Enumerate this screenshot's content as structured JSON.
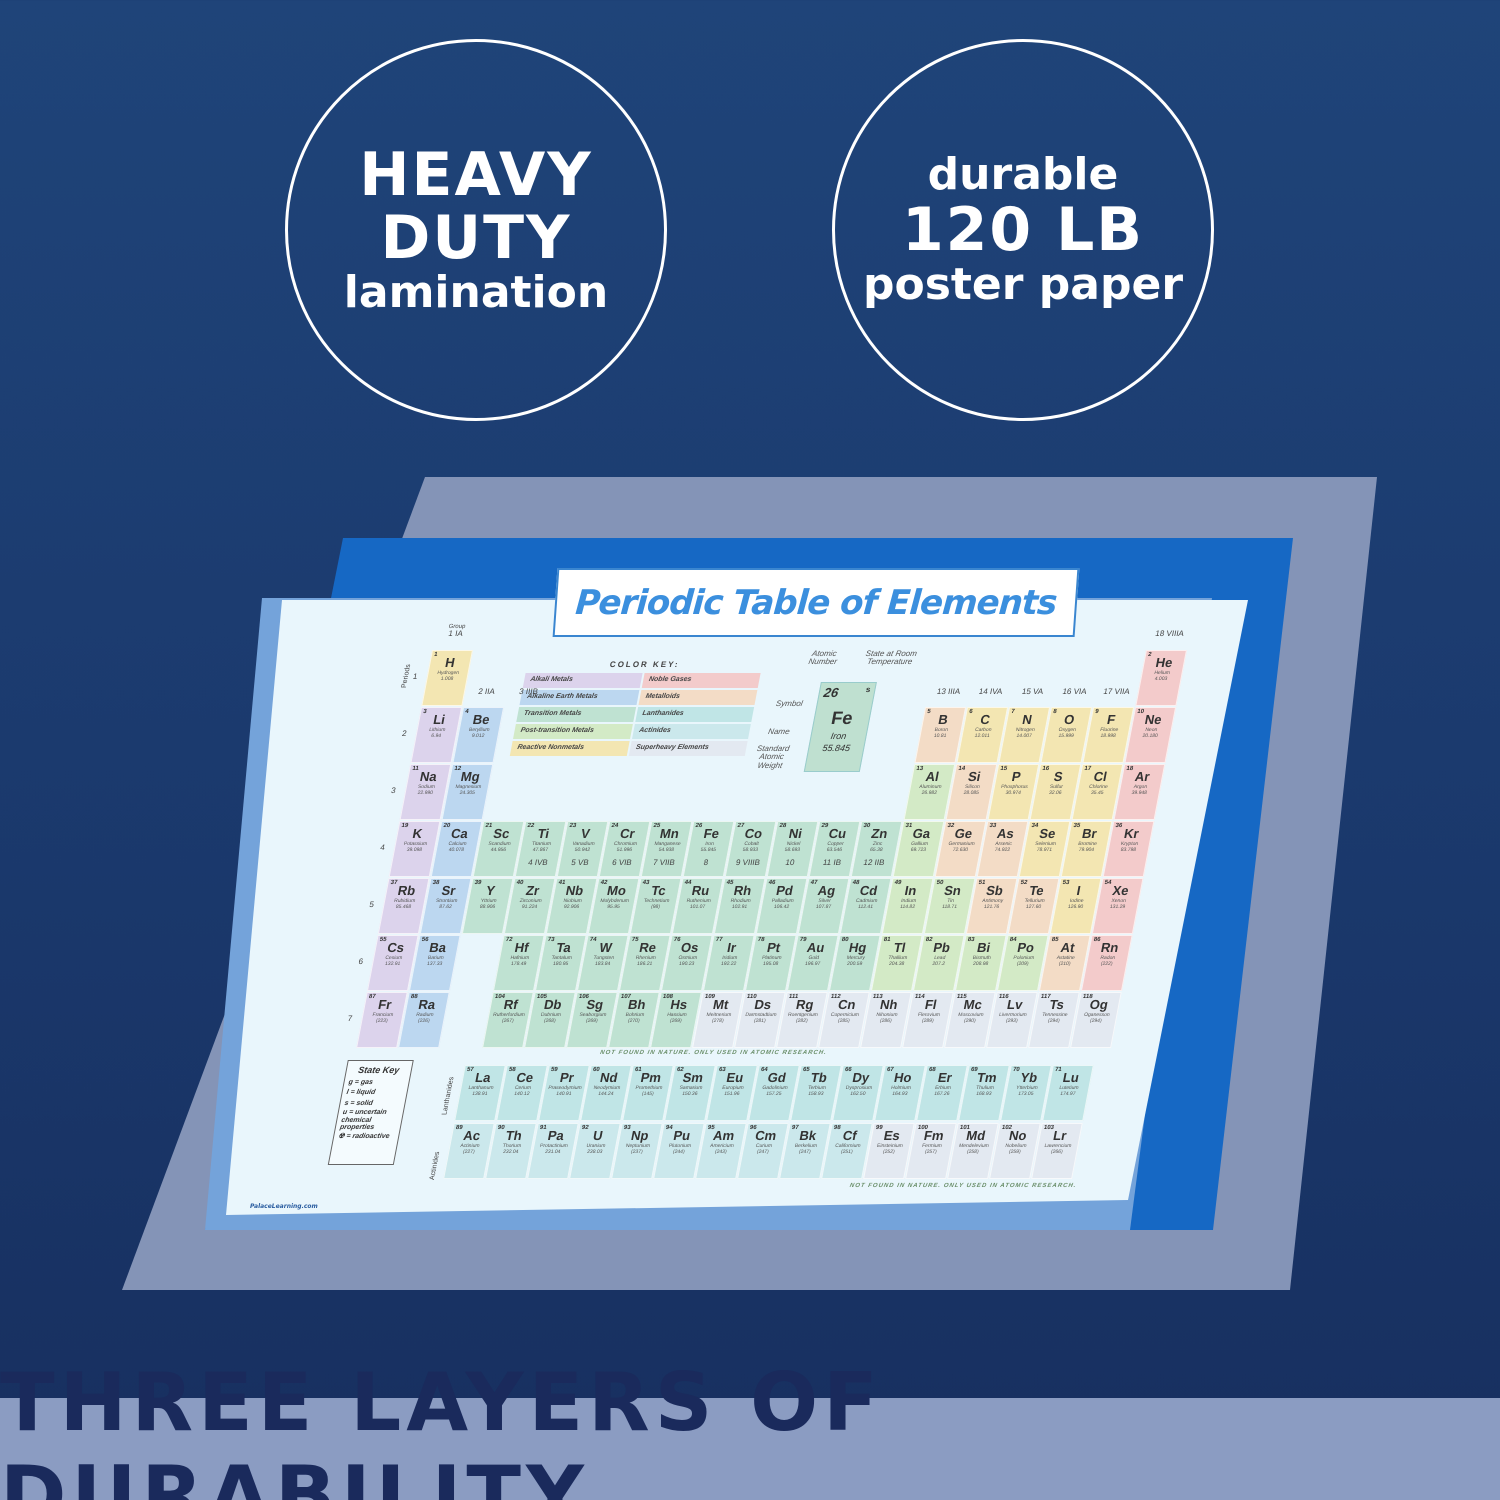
{
  "badges": [
    {
      "line1": "HEAVY",
      "line2": "DUTY",
      "line3": "lamination"
    },
    {
      "line1": "durable",
      "line2": "120 LB",
      "line3": "poster paper"
    }
  ],
  "poster": {
    "title": "Periodic Table of Elements",
    "website": "PalaceLearning.com",
    "group_heading": "Group",
    "periods_heading": "Periods",
    "groups": [
      "1 IA",
      "2 IIA",
      "3 IIIB",
      "4 IVB",
      "5 VB",
      "6 VIB",
      "7 VIIB",
      "8",
      "9 VIIIB",
      "10",
      "11 IB",
      "12 IIB",
      "13 IIIA",
      "14 IVA",
      "15 VA",
      "16 VIA",
      "17 VIIA",
      "18 VIIIA"
    ],
    "periods": [
      "1",
      "2",
      "3",
      "4",
      "5",
      "6",
      "7"
    ],
    "color_key": {
      "title": "COLOR KEY:",
      "items": [
        {
          "label": "Alkali Metals",
          "cat": "a",
          "color": "#dcd3ec"
        },
        {
          "label": "Noble Gases",
          "cat": "g",
          "color": "#f3cbcb"
        },
        {
          "label": "Alkaline Earth Metals",
          "cat": "ae",
          "color": "#bcd7f0"
        },
        {
          "label": "Metalloids",
          "cat": "m",
          "color": "#f3dcc6"
        },
        {
          "label": "Transition Metals",
          "cat": "t",
          "color": "#bfe2d2"
        },
        {
          "label": "Lanthanides",
          "cat": "l",
          "color": "#c0e5e6"
        },
        {
          "label": "Post-transition Metals",
          "cat": "p",
          "color": "#d3eac6"
        },
        {
          "label": "Actinides",
          "cat": "ac",
          "color": "#cbe8ec"
        },
        {
          "label": "Reactive Nonmetals",
          "cat": "n",
          "color": "#f3e6b2"
        },
        {
          "label": "Superheavy Elements",
          "cat": "s",
          "color": "#e3e9f1"
        }
      ]
    },
    "legend_cell": {
      "number": "26",
      "state": "s",
      "symbol": "Fe",
      "name": "Iron",
      "weight": "55.845",
      "label_number": "Atomic Number",
      "label_state": "State at Room Temperature",
      "label_symbol": "Symbol",
      "label_name": "Name",
      "label_weight": "Standard Atomic Weight"
    },
    "state_key": {
      "title": "State Key",
      "lines": [
        "g = gas",
        "l = liquid",
        "s = solid",
        "u = uncertain chemical properties",
        "☢ = radioactive"
      ]
    },
    "lanthanides_label": "Lanthanides",
    "actinides_label": "Actinides",
    "note_superheavy": "NOT FOUND IN NATURE. ONLY USED IN ATOMIC RESEARCH.",
    "elements": [
      [
        1,
        "H",
        "Hydrogen",
        "1.008",
        "n"
      ],
      [
        2,
        "He",
        "Helium",
        "4.003",
        "g"
      ],
      [
        3,
        "Li",
        "Lithium",
        "6.94",
        "a"
      ],
      [
        4,
        "Be",
        "Beryllium",
        "9.012",
        "ae"
      ],
      [
        5,
        "B",
        "Boron",
        "10.81",
        "m"
      ],
      [
        6,
        "C",
        "Carbon",
        "12.011",
        "n"
      ],
      [
        7,
        "N",
        "Nitrogen",
        "14.007",
        "n"
      ],
      [
        8,
        "O",
        "Oxygen",
        "15.999",
        "n"
      ],
      [
        9,
        "F",
        "Fluorine",
        "18.998",
        "n"
      ],
      [
        10,
        "Ne",
        "Neon",
        "20.180",
        "g"
      ],
      [
        11,
        "Na",
        "Sodium",
        "22.990",
        "a"
      ],
      [
        12,
        "Mg",
        "Magnesium",
        "24.305",
        "ae"
      ],
      [
        13,
        "Al",
        "Aluminum",
        "26.982",
        "p"
      ],
      [
        14,
        "Si",
        "Silicon",
        "28.085",
        "m"
      ],
      [
        15,
        "P",
        "Phosphorus",
        "30.974",
        "n"
      ],
      [
        16,
        "S",
        "Sulfur",
        "32.06",
        "n"
      ],
      [
        17,
        "Cl",
        "Chlorine",
        "35.45",
        "n"
      ],
      [
        18,
        "Ar",
        "Argon",
        "39.948",
        "g"
      ],
      [
        19,
        "K",
        "Potassium",
        "39.098",
        "a"
      ],
      [
        20,
        "Ca",
        "Calcium",
        "40.078",
        "ae"
      ],
      [
        21,
        "Sc",
        "Scandium",
        "44.956",
        "t"
      ],
      [
        22,
        "Ti",
        "Titanium",
        "47.867",
        "t"
      ],
      [
        23,
        "V",
        "Vanadium",
        "50.942",
        "t"
      ],
      [
        24,
        "Cr",
        "Chromium",
        "51.996",
        "t"
      ],
      [
        25,
        "Mn",
        "Manganese",
        "54.938",
        "t"
      ],
      [
        26,
        "Fe",
        "Iron",
        "55.845",
        "t"
      ],
      [
        27,
        "Co",
        "Cobalt",
        "58.933",
        "t"
      ],
      [
        28,
        "Ni",
        "Nickel",
        "58.693",
        "t"
      ],
      [
        29,
        "Cu",
        "Copper",
        "63.546",
        "t"
      ],
      [
        30,
        "Zn",
        "Zinc",
        "65.38",
        "t"
      ],
      [
        31,
        "Ga",
        "Gallium",
        "69.723",
        "p"
      ],
      [
        32,
        "Ge",
        "Germanium",
        "72.630",
        "m"
      ],
      [
        33,
        "As",
        "Arsenic",
        "74.922",
        "m"
      ],
      [
        34,
        "Se",
        "Selenium",
        "78.971",
        "n"
      ],
      [
        35,
        "Br",
        "Bromine",
        "79.904",
        "n"
      ],
      [
        36,
        "Kr",
        "Krypton",
        "83.798",
        "g"
      ],
      [
        37,
        "Rb",
        "Rubidium",
        "85.468",
        "a"
      ],
      [
        38,
        "Sr",
        "Strontium",
        "87.62",
        "ae"
      ],
      [
        39,
        "Y",
        "Yttrium",
        "88.906",
        "t"
      ],
      [
        40,
        "Zr",
        "Zirconium",
        "91.224",
        "t"
      ],
      [
        41,
        "Nb",
        "Niobium",
        "92.906",
        "t"
      ],
      [
        42,
        "Mo",
        "Molybdenum",
        "95.95",
        "t"
      ],
      [
        43,
        "Tc",
        "Technetium",
        "(98)",
        "t"
      ],
      [
        44,
        "Ru",
        "Ruthenium",
        "101.07",
        "t"
      ],
      [
        45,
        "Rh",
        "Rhodium",
        "102.91",
        "t"
      ],
      [
        46,
        "Pd",
        "Palladium",
        "106.42",
        "t"
      ],
      [
        47,
        "Ag",
        "Silver",
        "107.87",
        "t"
      ],
      [
        48,
        "Cd",
        "Cadmium",
        "112.41",
        "t"
      ],
      [
        49,
        "In",
        "Indium",
        "114.82",
        "p"
      ],
      [
        50,
        "Sn",
        "Tin",
        "118.71",
        "p"
      ],
      [
        51,
        "Sb",
        "Antimony",
        "121.76",
        "m"
      ],
      [
        52,
        "Te",
        "Tellurium",
        "127.60",
        "m"
      ],
      [
        53,
        "I",
        "Iodine",
        "126.90",
        "n"
      ],
      [
        54,
        "Xe",
        "Xenon",
        "131.29",
        "g"
      ],
      [
        55,
        "Cs",
        "Cesium",
        "132.91",
        "a"
      ],
      [
        56,
        "Ba",
        "Barium",
        "137.33",
        "ae"
      ],
      [
        57,
        "La",
        "Lanthanum",
        "138.91",
        "l"
      ],
      [
        58,
        "Ce",
        "Cerium",
        "140.12",
        "l"
      ],
      [
        59,
        "Pr",
        "Praseodymium",
        "140.91",
        "l"
      ],
      [
        60,
        "Nd",
        "Neodymium",
        "144.24",
        "l"
      ],
      [
        61,
        "Pm",
        "Promethium",
        "(145)",
        "l"
      ],
      [
        62,
        "Sm",
        "Samarium",
        "150.36",
        "l"
      ],
      [
        63,
        "Eu",
        "Europium",
        "151.96",
        "l"
      ],
      [
        64,
        "Gd",
        "Gadolinium",
        "157.25",
        "l"
      ],
      [
        65,
        "Tb",
        "Terbium",
        "158.93",
        "l"
      ],
      [
        66,
        "Dy",
        "Dysprosium",
        "162.50",
        "l"
      ],
      [
        67,
        "Ho",
        "Holmium",
        "164.93",
        "l"
      ],
      [
        68,
        "Er",
        "Erbium",
        "167.26",
        "l"
      ],
      [
        69,
        "Tm",
        "Thulium",
        "168.93",
        "l"
      ],
      [
        70,
        "Yb",
        "Ytterbium",
        "173.05",
        "l"
      ],
      [
        71,
        "Lu",
        "Lutetium",
        "174.97",
        "l"
      ],
      [
        72,
        "Hf",
        "Hafnium",
        "178.49",
        "t"
      ],
      [
        73,
        "Ta",
        "Tantalum",
        "180.95",
        "t"
      ],
      [
        74,
        "W",
        "Tungsten",
        "183.84",
        "t"
      ],
      [
        75,
        "Re",
        "Rhenium",
        "186.21",
        "t"
      ],
      [
        76,
        "Os",
        "Osmium",
        "190.23",
        "t"
      ],
      [
        77,
        "Ir",
        "Iridium",
        "192.22",
        "t"
      ],
      [
        78,
        "Pt",
        "Platinum",
        "195.08",
        "t"
      ],
      [
        79,
        "Au",
        "Gold",
        "196.97",
        "t"
      ],
      [
        80,
        "Hg",
        "Mercury",
        "200.59",
        "t"
      ],
      [
        81,
        "Tl",
        "Thallium",
        "204.38",
        "p"
      ],
      [
        82,
        "Pb",
        "Lead",
        "207.2",
        "p"
      ],
      [
        83,
        "Bi",
        "Bismuth",
        "208.98",
        "p"
      ],
      [
        84,
        "Po",
        "Polonium",
        "(209)",
        "p"
      ],
      [
        85,
        "At",
        "Astatine",
        "(210)",
        "m"
      ],
      [
        86,
        "Rn",
        "Radon",
        "(222)",
        "g"
      ],
      [
        87,
        "Fr",
        "Francium",
        "(223)",
        "a"
      ],
      [
        88,
        "Ra",
        "Radium",
        "(226)",
        "ae"
      ],
      [
        89,
        "Ac",
        "Actinium",
        "(227)",
        "ac"
      ],
      [
        90,
        "Th",
        "Thorium",
        "232.04",
        "ac"
      ],
      [
        91,
        "Pa",
        "Protactinium",
        "231.04",
        "ac"
      ],
      [
        92,
        "U",
        "Uranium",
        "238.03",
        "ac"
      ],
      [
        93,
        "Np",
        "Neptunium",
        "(237)",
        "ac"
      ],
      [
        94,
        "Pu",
        "Plutonium",
        "(244)",
        "ac"
      ],
      [
        95,
        "Am",
        "Americium",
        "(243)",
        "ac"
      ],
      [
        96,
        "Cm",
        "Curium",
        "(247)",
        "ac"
      ],
      [
        97,
        "Bk",
        "Berkelium",
        "(247)",
        "ac"
      ],
      [
        98,
        "Cf",
        "Californium",
        "(251)",
        "ac"
      ],
      [
        99,
        "Es",
        "Einsteinium",
        "(252)",
        "s"
      ],
      [
        100,
        "Fm",
        "Fermium",
        "(257)",
        "s"
      ],
      [
        101,
        "Md",
        "Mendelevium",
        "(258)",
        "s"
      ],
      [
        102,
        "No",
        "Nobelium",
        "(259)",
        "s"
      ],
      [
        103,
        "Lr",
        "Lawrencium",
        "(266)",
        "s"
      ],
      [
        104,
        "Rf",
        "Rutherfordium",
        "(267)",
        "t"
      ],
      [
        105,
        "Db",
        "Dubnium",
        "(268)",
        "t"
      ],
      [
        106,
        "Sg",
        "Seaborgium",
        "(269)",
        "t"
      ],
      [
        107,
        "Bh",
        "Bohrium",
        "(270)",
        "t"
      ],
      [
        108,
        "Hs",
        "Hassium",
        "(269)",
        "t"
      ],
      [
        109,
        "Mt",
        "Meitnerium",
        "(278)",
        "s"
      ],
      [
        110,
        "Ds",
        "Darmstadtium",
        "(281)",
        "s"
      ],
      [
        111,
        "Rg",
        "Roentgenium",
        "(282)",
        "s"
      ],
      [
        112,
        "Cn",
        "Copernicium",
        "(285)",
        "s"
      ],
      [
        113,
        "Nh",
        "Nihonium",
        "(286)",
        "s"
      ],
      [
        114,
        "Fl",
        "Flerovium",
        "(289)",
        "s"
      ],
      [
        115,
        "Mc",
        "Moscovium",
        "(290)",
        "s"
      ],
      [
        116,
        "Lv",
        "Livermorium",
        "(293)",
        "s"
      ],
      [
        117,
        "Ts",
        "Tennessine",
        "(294)",
        "s"
      ],
      [
        118,
        "Og",
        "Oganesson",
        "(294)",
        "s"
      ]
    ]
  },
  "banner": "THREE LAYERS OF DURABILITY"
}
